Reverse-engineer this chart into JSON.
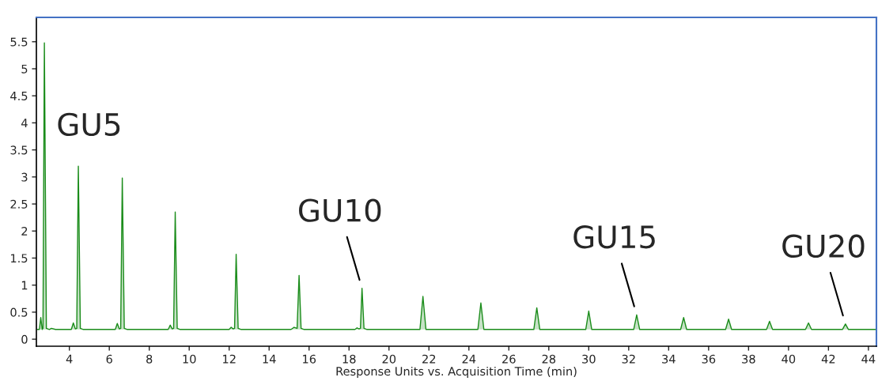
{
  "chart_data": {
    "type": "line",
    "xlabel": "Response Units vs. Acquisition Time (min)",
    "xlim": [
      2.35,
      44.4
    ],
    "ylim": [
      -0.13,
      5.95
    ],
    "xticks": [
      4,
      6,
      8,
      10,
      12,
      14,
      16,
      18,
      20,
      22,
      24,
      26,
      28,
      30,
      32,
      34,
      36,
      38,
      40,
      42,
      44
    ],
    "yticks": [
      0,
      0.5,
      1,
      1.5,
      2,
      2.5,
      3,
      3.5,
      4,
      4.5,
      5,
      5.5
    ],
    "grid": false,
    "legend": false,
    "marker": "none",
    "line_style": "solid",
    "series": [
      {
        "color": "#1a8c1a",
        "x": [
          2.4,
          2.5,
          2.57,
          2.64,
          2.68,
          2.75,
          2.85,
          3.0,
          3.1,
          3.3,
          4.1,
          4.2,
          4.3,
          4.37,
          4.45,
          4.55,
          4.7,
          6.3,
          6.4,
          6.5,
          6.57,
          6.65,
          6.75,
          6.9,
          8.95,
          9.05,
          9.15,
          9.22,
          9.3,
          9.4,
          9.55,
          12.0,
          12.1,
          12.2,
          12.27,
          12.35,
          12.45,
          12.6,
          15.1,
          15.25,
          15.4,
          15.5,
          15.6,
          15.75,
          18.3,
          18.4,
          18.5,
          18.57,
          18.65,
          18.75,
          18.9,
          21.55,
          21.7,
          21.85,
          24.45,
          24.6,
          24.75,
          27.25,
          27.4,
          27.55,
          29.85,
          30.0,
          30.15,
          32.25,
          32.4,
          32.55,
          34.6,
          34.75,
          34.9,
          36.85,
          37.0,
          37.15,
          38.9,
          39.05,
          39.2,
          40.85,
          41.0,
          41.15,
          42.7,
          42.85,
          43.0,
          44.4
        ],
        "values": [
          0.18,
          0.18,
          0.4,
          0.18,
          0.2,
          5.48,
          0.2,
          0.18,
          0.2,
          0.18,
          0.18,
          0.3,
          0.19,
          0.2,
          3.2,
          0.2,
          0.18,
          0.18,
          0.29,
          0.19,
          0.2,
          2.98,
          0.2,
          0.18,
          0.18,
          0.26,
          0.19,
          0.2,
          2.35,
          0.2,
          0.18,
          0.18,
          0.22,
          0.19,
          0.2,
          1.57,
          0.2,
          0.18,
          0.18,
          0.22,
          0.2,
          1.18,
          0.2,
          0.18,
          0.18,
          0.21,
          0.19,
          0.2,
          0.94,
          0.2,
          0.18,
          0.18,
          0.79,
          0.18,
          0.18,
          0.67,
          0.18,
          0.18,
          0.58,
          0.18,
          0.18,
          0.52,
          0.18,
          0.18,
          0.45,
          0.18,
          0.18,
          0.4,
          0.18,
          0.18,
          0.37,
          0.18,
          0.18,
          0.33,
          0.18,
          0.18,
          0.3,
          0.18,
          0.18,
          0.28,
          0.18,
          0.18
        ]
      }
    ],
    "annotations": [
      {
        "text": "GU5",
        "x": 4.45,
        "y": 3.2
      },
      {
        "text": "GU10",
        "x": 18.65,
        "y": 0.94
      },
      {
        "text": "GU15",
        "x": 32.4,
        "y": 0.45
      },
      {
        "text": "GU20",
        "x": 42.85,
        "y": 0.28
      }
    ]
  }
}
